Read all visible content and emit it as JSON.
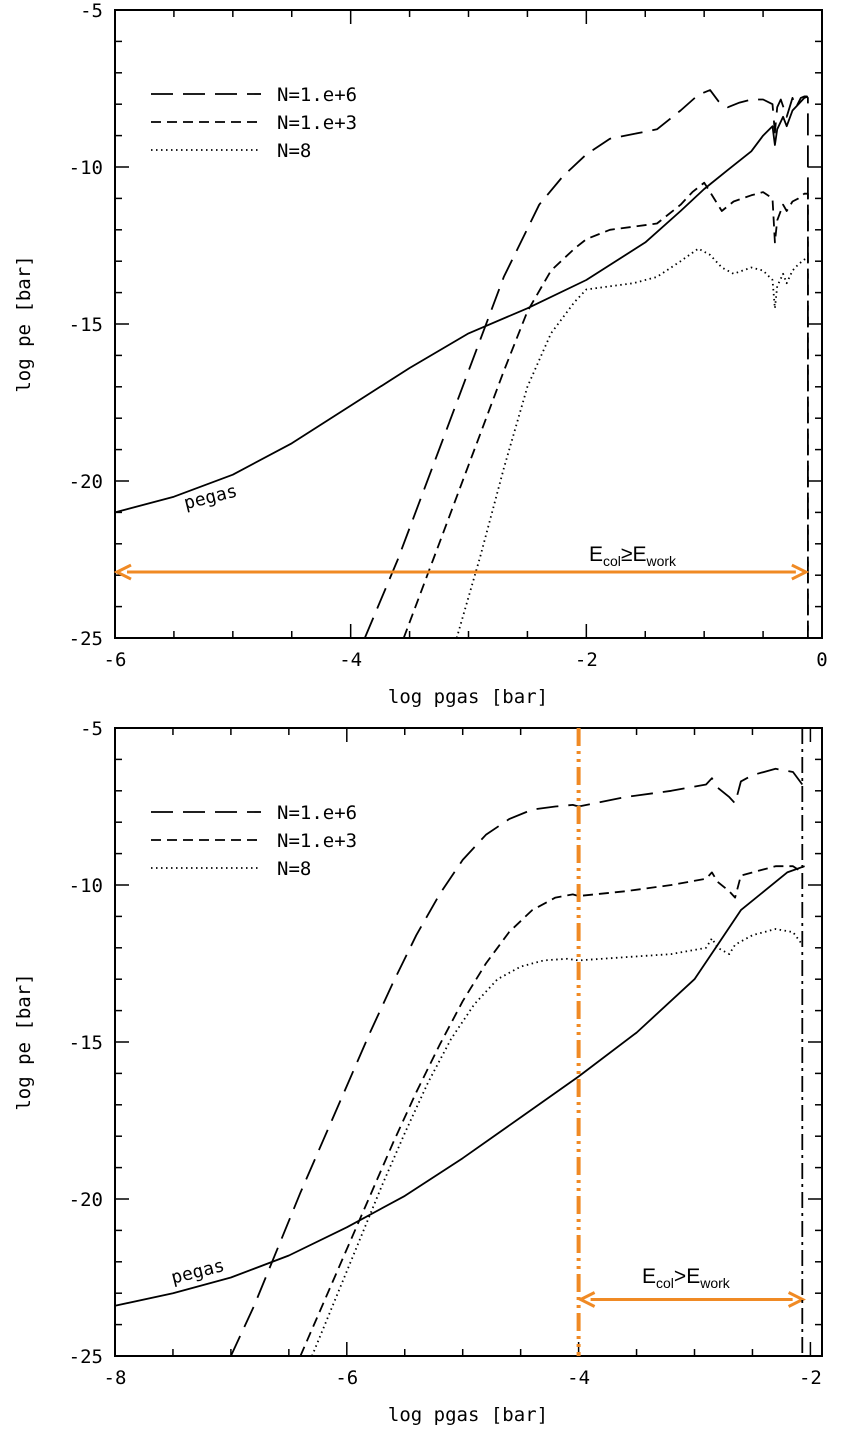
{
  "chart_data": [
    {
      "type": "line",
      "xlabel": "log pgas [bar]",
      "ylabel": "log pe [bar]",
      "xlim": [
        -6,
        0
      ],
      "ylim": [
        -25,
        -5
      ],
      "xticks": [
        "-6",
        "-4",
        "-2",
        "0"
      ],
      "yticks": [
        "-5",
        "-10",
        "-15",
        "-20",
        "-25"
      ],
      "legend_position": "top-left",
      "series": [
        {
          "name": "N=1.e+6",
          "dash": "long-dash",
          "x": [
            -3.88,
            -3.6,
            -3.3,
            -3.0,
            -2.7,
            -2.4,
            -2.2,
            -2.0,
            -1.8,
            -1.6,
            -1.4,
            -1.2,
            -1.05,
            -0.95,
            -0.88,
            -0.8,
            -0.7,
            -0.6,
            -0.5,
            -0.42,
            -0.4,
            -0.38,
            -0.35,
            -0.3,
            -0.25,
            -0.22,
            -0.18,
            -0.15,
            -0.13,
            -0.12,
            -0.12
          ],
          "y": [
            -25.0,
            -22.5,
            -19.5,
            -16.5,
            -13.5,
            -11.2,
            -10.3,
            -9.6,
            -9.1,
            -8.95,
            -8.8,
            -8.2,
            -7.7,
            -7.55,
            -7.9,
            -8.1,
            -7.95,
            -7.85,
            -7.85,
            -8.0,
            -8.9,
            -8.1,
            -7.85,
            -8.4,
            -7.8,
            -8.1,
            -7.8,
            -7.75,
            -7.75,
            -7.8,
            -25.0
          ]
        },
        {
          "name": "N=1.e+3",
          "dash": "short-dash",
          "x": [
            -3.55,
            -3.3,
            -3.0,
            -2.7,
            -2.5,
            -2.3,
            -2.1,
            -2.0,
            -1.8,
            -1.6,
            -1.4,
            -1.2,
            -1.1,
            -1.0,
            -0.95,
            -0.85,
            -0.75,
            -0.6,
            -0.5,
            -0.42,
            -0.4,
            -0.38,
            -0.33,
            -0.3,
            -0.25,
            -0.2,
            -0.15,
            -0.12,
            -0.12
          ],
          "y": [
            -25.0,
            -22.5,
            -19.5,
            -16.5,
            -14.6,
            -13.3,
            -12.6,
            -12.3,
            -12.0,
            -11.9,
            -11.8,
            -11.2,
            -10.8,
            -10.5,
            -10.8,
            -11.4,
            -11.1,
            -10.9,
            -10.8,
            -11.0,
            -12.4,
            -11.7,
            -11.2,
            -11.4,
            -11.1,
            -11.0,
            -10.85,
            -10.85,
            -25.0
          ]
        },
        {
          "name": "N=8",
          "dash": "dotted",
          "x": [
            -3.1,
            -2.9,
            -2.7,
            -2.5,
            -2.3,
            -2.1,
            -2.0,
            -1.8,
            -1.6,
            -1.4,
            -1.2,
            -1.05,
            -0.95,
            -0.85,
            -0.75,
            -0.6,
            -0.5,
            -0.42,
            -0.4,
            -0.38,
            -0.33,
            -0.3,
            -0.25,
            -0.2,
            -0.15,
            -0.12
          ],
          "y": [
            -25.0,
            -22.4,
            -19.6,
            -17.0,
            -15.3,
            -14.3,
            -13.9,
            -13.8,
            -13.7,
            -13.5,
            -13.0,
            -12.6,
            -12.8,
            -13.2,
            -13.4,
            -13.2,
            -13.3,
            -13.6,
            -14.5,
            -13.8,
            -13.4,
            -13.7,
            -13.3,
            -13.1,
            -12.95,
            -12.9
          ]
        },
        {
          "name": "pegas",
          "dash": "solid",
          "x": [
            -6.0,
            -5.5,
            -5.0,
            -4.5,
            -4.0,
            -3.5,
            -3.0,
            -2.5,
            -2.0,
            -1.5,
            -1.2,
            -1.0,
            -0.8,
            -0.6,
            -0.5,
            -0.42,
            -0.4,
            -0.38,
            -0.33,
            -0.3,
            -0.25,
            -0.2,
            -0.15,
            -0.12
          ],
          "y": [
            -21.0,
            -20.5,
            -19.8,
            -18.8,
            -17.6,
            -16.4,
            -15.3,
            -14.5,
            -13.6,
            -12.4,
            -11.4,
            -10.7,
            -10.1,
            -9.5,
            -9.0,
            -8.7,
            -9.3,
            -8.8,
            -8.4,
            -8.7,
            -8.2,
            -8.0,
            -7.8,
            -7.75
          ]
        }
      ],
      "annotations": [
        {
          "text": "pegas",
          "x": -5.4,
          "y": -20.9
        },
        {
          "text": "E_col≥E_work",
          "x": -1.1,
          "y": -22.2
        },
        {
          "type": "double-arrow",
          "x": [
            -6,
            -0.12
          ],
          "y": -22.9,
          "color": "#f08a24"
        }
      ]
    },
    {
      "type": "line",
      "xlabel": "log pgas [bar]",
      "ylabel": "log pe [bar]",
      "xlim": [
        -8,
        -1.9
      ],
      "ylim": [
        -25,
        -5
      ],
      "xticks": [
        "-8",
        "-6",
        "-4",
        "-2"
      ],
      "yticks": [
        "-5",
        "-10",
        "-15",
        "-20",
        "-25"
      ],
      "legend_position": "top-left",
      "series": [
        {
          "name": "N=1.e+6",
          "dash": "long-dash",
          "x": [
            -7.0,
            -6.8,
            -6.6,
            -6.4,
            -6.2,
            -6.0,
            -5.8,
            -5.6,
            -5.4,
            -5.2,
            -5.0,
            -4.8,
            -4.6,
            -4.4,
            -4.2,
            -4.05,
            -4.0,
            -3.6,
            -3.2,
            -2.9,
            -2.85,
            -2.8,
            -2.7,
            -2.65,
            -2.6,
            -2.5,
            -2.3,
            -2.15,
            -2.07
          ],
          "y": [
            -25.0,
            -23.4,
            -21.6,
            -19.8,
            -18.1,
            -16.4,
            -14.7,
            -13.1,
            -11.6,
            -10.3,
            -9.2,
            -8.4,
            -7.9,
            -7.6,
            -7.5,
            -7.45,
            -7.5,
            -7.2,
            -7.0,
            -6.8,
            -6.6,
            -6.9,
            -7.2,
            -7.4,
            -6.7,
            -6.5,
            -6.3,
            -6.4,
            -6.8
          ]
        },
        {
          "name": "N=1.e+3",
          "dash": "short-dash",
          "x": [
            -6.4,
            -6.2,
            -6.0,
            -5.8,
            -5.6,
            -5.4,
            -5.2,
            -5.0,
            -4.8,
            -4.6,
            -4.4,
            -4.2,
            -4.05,
            -4.0,
            -3.6,
            -3.2,
            -2.9,
            -2.85,
            -2.8,
            -2.7,
            -2.65,
            -2.6,
            -2.5,
            -2.3,
            -2.15,
            -2.07
          ],
          "y": [
            -25.0,
            -23.3,
            -21.6,
            -19.9,
            -18.2,
            -16.6,
            -15.1,
            -13.7,
            -12.5,
            -11.5,
            -10.8,
            -10.4,
            -10.3,
            -10.35,
            -10.2,
            -10.0,
            -9.8,
            -9.6,
            -9.9,
            -10.2,
            -10.4,
            -9.7,
            -9.6,
            -9.4,
            -9.4,
            -9.6
          ]
        },
        {
          "name": "N=8",
          "dash": "dotted",
          "x": [
            -6.3,
            -6.1,
            -5.9,
            -5.7,
            -5.5,
            -5.3,
            -5.1,
            -4.9,
            -4.7,
            -4.5,
            -4.3,
            -4.1,
            -4.0,
            -3.6,
            -3.2,
            -2.9,
            -2.85,
            -2.8,
            -2.7,
            -2.65,
            -2.6,
            -2.5,
            -2.3,
            -2.15,
            -2.07
          ],
          "y": [
            -25.0,
            -23.2,
            -21.4,
            -19.6,
            -17.9,
            -16.3,
            -14.9,
            -13.8,
            -13.0,
            -12.6,
            -12.4,
            -12.35,
            -12.4,
            -12.3,
            -12.2,
            -12.0,
            -11.7,
            -12.0,
            -12.2,
            -11.9,
            -11.8,
            -11.6,
            -11.4,
            -11.5,
            -11.9
          ]
        },
        {
          "name": "pegas",
          "dash": "solid",
          "x": [
            -8.0,
            -7.5,
            -7.0,
            -6.5,
            -6.0,
            -5.5,
            -5.0,
            -4.5,
            -4.0,
            -3.5,
            -3.0,
            -2.8,
            -2.6,
            -2.4,
            -2.2,
            -2.05
          ],
          "y": [
            -23.4,
            -23.0,
            -22.5,
            -21.8,
            -20.9,
            -19.9,
            -18.7,
            -17.4,
            -16.1,
            -14.7,
            -13.0,
            -11.9,
            -10.8,
            -10.2,
            -9.6,
            -9.4
          ]
        }
      ],
      "annotations": [
        {
          "text": "pegas",
          "x": -7.5,
          "y": -22.7
        },
        {
          "text": "E_col>E_work",
          "x": -3.4,
          "y": -22.3
        },
        {
          "type": "double-arrow",
          "x": [
            -4.0,
            -2.05
          ],
          "y": -23.2,
          "color": "#f08a24"
        },
        {
          "type": "vline",
          "x": -4.0,
          "style": "dash-dot-dot",
          "color": "#f08a24"
        },
        {
          "type": "vline",
          "x": -2.07,
          "style": "dash-dot",
          "color": "#000000"
        }
      ]
    }
  ],
  "labels": {
    "top_annotation": {
      "main1": "E",
      "sub1": "col",
      "rel": "≥",
      "main2": "E",
      "sub2": "work"
    },
    "bottom_annotation": {
      "main1": "E",
      "sub1": "col",
      "rel": ">",
      "main2": "E",
      "sub2": "work"
    }
  },
  "colors": {
    "accent": "#f08a24",
    "ink": "#000000"
  }
}
